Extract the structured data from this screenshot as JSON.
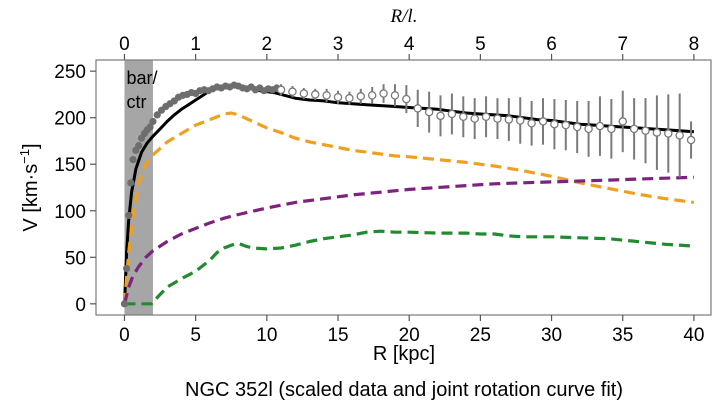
{
  "chart_data": {
    "type": "line",
    "caption": "NGC 352l (scaled data and joint rotation curve fit)",
    "xlabel": "R [kpc]",
    "ylabel_parts": {
      "main": "V [km·s",
      "sup": "−1",
      "close": "]"
    },
    "top_xlabel": "R/l.",
    "xlim": [
      -2,
      41.2
    ],
    "ylim": [
      -12,
      262
    ],
    "x_ticks": [
      0,
      5,
      10,
      15,
      20,
      25,
      30,
      35,
      40
    ],
    "x_tick_labels": [
      "0",
      "5",
      "10",
      "15",
      "20",
      "25",
      "30",
      "35",
      "40"
    ],
    "y_ticks": [
      0,
      50,
      100,
      150,
      200,
      250
    ],
    "y_tick_labels": [
      "0",
      "50",
      "100",
      "150",
      "200",
      "250"
    ],
    "top_ticks": [
      0,
      1,
      2,
      3,
      4,
      5,
      6,
      7,
      8
    ],
    "top_tick_labels": [
      "0",
      "1",
      "2",
      "3",
      "4",
      "5",
      "6",
      "7",
      "8"
    ],
    "top_axis_scale_kpc_per_unit": 5,
    "shaded_region": {
      "x": [
        0,
        2
      ],
      "label_lines": [
        "bar/",
        "ctr"
      ],
      "color": "#a6a6a6"
    },
    "series": [
      {
        "style": "solid",
        "color": "#000000",
        "x": [
          0,
          0.15,
          0.3,
          0.5,
          0.8,
          1.2,
          1.6,
          2,
          2.5,
          3,
          3.5,
          4,
          4.5,
          5,
          5.5,
          6,
          6.5,
          7,
          7.5,
          8,
          8.5,
          9,
          9.5,
          10,
          10.5,
          11,
          12,
          13,
          14,
          15,
          16,
          17,
          18,
          19,
          20,
          21,
          22,
          23,
          24,
          25,
          26,
          27,
          28,
          29,
          30,
          31,
          32,
          33,
          34,
          35,
          36,
          37,
          38,
          39,
          40
        ],
        "y": [
          0,
          55,
          90,
          120,
          145,
          163,
          173,
          180,
          188,
          196,
          203,
          209,
          214,
          219,
          224,
          229,
          232,
          234,
          235,
          235,
          233,
          231,
          229,
          228,
          227,
          225,
          221,
          219,
          218,
          216,
          215,
          214,
          213,
          212,
          211,
          210,
          209,
          207,
          205,
          204,
          203,
          202,
          200,
          198,
          197,
          195,
          193,
          192,
          191,
          190,
          189,
          188,
          187,
          186,
          185
        ]
      },
      {
        "style": "dashed",
        "color": "#f0a020",
        "x": [
          0,
          0.3,
          0.6,
          1,
          1.5,
          2,
          2.5,
          3,
          4,
          5,
          6,
          7,
          7.5,
          8,
          9,
          10,
          11,
          12,
          13,
          14,
          15,
          16,
          17,
          18,
          19,
          20,
          22,
          24,
          26,
          28,
          30,
          32,
          34,
          36,
          38,
          40
        ],
        "y": [
          0,
          55,
          95,
          130,
          150,
          160,
          167,
          174,
          183,
          192,
          198,
          204,
          205,
          203,
          196,
          189,
          184,
          178,
          174,
          171,
          168,
          165,
          163,
          161,
          159,
          158,
          155,
          152,
          148,
          143,
          137,
          130,
          124,
          118,
          113,
          109
        ]
      },
      {
        "style": "dashed",
        "color": "#7b237e",
        "x": [
          0,
          0.3,
          0.6,
          1,
          1.5,
          2,
          3,
          4,
          5,
          6,
          7,
          8,
          10,
          12,
          14,
          16,
          18,
          20,
          22,
          24,
          26,
          28,
          30,
          32,
          34,
          36,
          38,
          40
        ],
        "y": [
          0,
          18,
          30,
          40,
          50,
          57,
          67,
          75,
          81,
          87,
          92,
          96,
          103,
          109,
          113,
          117,
          120,
          123,
          125,
          127,
          129,
          130,
          131,
          132,
          133,
          134,
          135,
          136
        ]
      },
      {
        "style": "dashed",
        "color": "#228b30",
        "x": [
          0,
          1.9,
          2,
          2.5,
          3,
          4,
          5,
          6,
          6.5,
          7,
          7.5,
          8,
          8.5,
          9,
          10,
          11,
          12,
          13,
          14,
          15,
          16,
          17,
          18,
          19,
          20,
          22,
          24,
          25,
          26,
          27,
          28,
          30,
          32,
          34,
          36,
          38,
          40
        ],
        "y": [
          0,
          0,
          2,
          10,
          18,
          27,
          35,
          47,
          55,
          60,
          63,
          65,
          62,
          60,
          59,
          60,
          63,
          67,
          70,
          72,
          74,
          77,
          78,
          77,
          77,
          76,
          76,
          75,
          75,
          73,
          72,
          72,
          71,
          70,
          67,
          64,
          62
        ]
      }
    ],
    "scaled_data_filled": {
      "color": "#6e6e6e",
      "x": [
        0,
        0.15,
        0.3,
        0.45,
        0.6,
        0.8,
        1,
        1.2,
        1.4,
        1.6,
        1.8,
        2,
        2.3,
        2.6,
        2.9,
        3.2,
        3.5,
        3.8,
        4.1,
        4.4,
        4.7,
        5,
        5.3,
        5.6,
        5.9,
        6.2,
        6.5,
        6.8,
        7.1,
        7.4,
        7.7,
        8,
        8.3,
        8.6,
        8.9,
        9.2,
        9.5,
        9.8,
        10.1,
        10.4,
        10.7
      ],
      "y": [
        0,
        38,
        95,
        130,
        155,
        165,
        170,
        178,
        183,
        187,
        190,
        196,
        203,
        208,
        212,
        215,
        218,
        222,
        224,
        225,
        227,
        226,
        229,
        230,
        229,
        231,
        233,
        232,
        234,
        233,
        235,
        234,
        232,
        231,
        233,
        230,
        232,
        229,
        231,
        230,
        232
      ]
    },
    "scaled_data_open": {
      "color": "#7a7a7a",
      "x": [
        11,
        11.8,
        12.6,
        13.4,
        14.2,
        15,
        15.8,
        16.6,
        17.4,
        18.2,
        19,
        19.8,
        20.6,
        21.4,
        22.2,
        23,
        23.8,
        24.6,
        25.4,
        26.2,
        27,
        27.8,
        28.6,
        29.4,
        30.2,
        31,
        31.8,
        32.6,
        33.4,
        34.2,
        35,
        35.8,
        36.6,
        37.4,
        38.2,
        39,
        39.8
      ],
      "y": [
        230,
        228,
        226,
        225,
        224,
        222,
        221,
        223,
        224,
        226,
        224,
        220,
        210,
        206,
        202,
        204,
        201,
        199,
        201,
        199,
        198,
        197,
        194,
        196,
        193,
        192,
        190,
        188,
        191,
        188,
        196,
        188,
        186,
        184,
        183,
        181,
        176
      ],
      "err": [
        6,
        6,
        6,
        6,
        7,
        7,
        7,
        8,
        9,
        10,
        12,
        15,
        20,
        22,
        22,
        22,
        22,
        22,
        22,
        22,
        23,
        25,
        24,
        25,
        27,
        27,
        28,
        30,
        32,
        32,
        33,
        33,
        35,
        40,
        42,
        45,
        20
      ]
    }
  }
}
